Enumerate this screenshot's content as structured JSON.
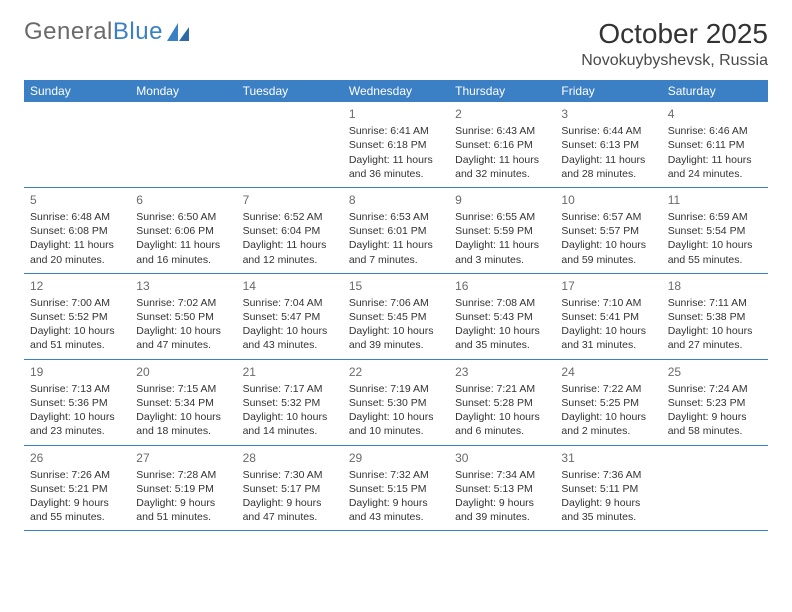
{
  "logo": {
    "text_general": "General",
    "text_blue": "Blue"
  },
  "title": "October 2025",
  "location": "Novokuybyshevsk, Russia",
  "colors": {
    "header_bg": "#3b7fc4",
    "header_text": "#ffffff",
    "rule": "#3b7fc4",
    "body_text": "#333333",
    "daynum_text": "#6a6a6a",
    "logo_gray": "#6a6a6a",
    "logo_blue": "#3b7fc4",
    "page_bg": "#ffffff"
  },
  "day_names": [
    "Sunday",
    "Monday",
    "Tuesday",
    "Wednesday",
    "Thursday",
    "Friday",
    "Saturday"
  ],
  "weeks": [
    [
      null,
      null,
      null,
      {
        "n": "1",
        "sr": "Sunrise: 6:41 AM",
        "ss": "Sunset: 6:18 PM",
        "dl1": "Daylight: 11 hours",
        "dl2": "and 36 minutes."
      },
      {
        "n": "2",
        "sr": "Sunrise: 6:43 AM",
        "ss": "Sunset: 6:16 PM",
        "dl1": "Daylight: 11 hours",
        "dl2": "and 32 minutes."
      },
      {
        "n": "3",
        "sr": "Sunrise: 6:44 AM",
        "ss": "Sunset: 6:13 PM",
        "dl1": "Daylight: 11 hours",
        "dl2": "and 28 minutes."
      },
      {
        "n": "4",
        "sr": "Sunrise: 6:46 AM",
        "ss": "Sunset: 6:11 PM",
        "dl1": "Daylight: 11 hours",
        "dl2": "and 24 minutes."
      }
    ],
    [
      {
        "n": "5",
        "sr": "Sunrise: 6:48 AM",
        "ss": "Sunset: 6:08 PM",
        "dl1": "Daylight: 11 hours",
        "dl2": "and 20 minutes."
      },
      {
        "n": "6",
        "sr": "Sunrise: 6:50 AM",
        "ss": "Sunset: 6:06 PM",
        "dl1": "Daylight: 11 hours",
        "dl2": "and 16 minutes."
      },
      {
        "n": "7",
        "sr": "Sunrise: 6:52 AM",
        "ss": "Sunset: 6:04 PM",
        "dl1": "Daylight: 11 hours",
        "dl2": "and 12 minutes."
      },
      {
        "n": "8",
        "sr": "Sunrise: 6:53 AM",
        "ss": "Sunset: 6:01 PM",
        "dl1": "Daylight: 11 hours",
        "dl2": "and 7 minutes."
      },
      {
        "n": "9",
        "sr": "Sunrise: 6:55 AM",
        "ss": "Sunset: 5:59 PM",
        "dl1": "Daylight: 11 hours",
        "dl2": "and 3 minutes."
      },
      {
        "n": "10",
        "sr": "Sunrise: 6:57 AM",
        "ss": "Sunset: 5:57 PM",
        "dl1": "Daylight: 10 hours",
        "dl2": "and 59 minutes."
      },
      {
        "n": "11",
        "sr": "Sunrise: 6:59 AM",
        "ss": "Sunset: 5:54 PM",
        "dl1": "Daylight: 10 hours",
        "dl2": "and 55 minutes."
      }
    ],
    [
      {
        "n": "12",
        "sr": "Sunrise: 7:00 AM",
        "ss": "Sunset: 5:52 PM",
        "dl1": "Daylight: 10 hours",
        "dl2": "and 51 minutes."
      },
      {
        "n": "13",
        "sr": "Sunrise: 7:02 AM",
        "ss": "Sunset: 5:50 PM",
        "dl1": "Daylight: 10 hours",
        "dl2": "and 47 minutes."
      },
      {
        "n": "14",
        "sr": "Sunrise: 7:04 AM",
        "ss": "Sunset: 5:47 PM",
        "dl1": "Daylight: 10 hours",
        "dl2": "and 43 minutes."
      },
      {
        "n": "15",
        "sr": "Sunrise: 7:06 AM",
        "ss": "Sunset: 5:45 PM",
        "dl1": "Daylight: 10 hours",
        "dl2": "and 39 minutes."
      },
      {
        "n": "16",
        "sr": "Sunrise: 7:08 AM",
        "ss": "Sunset: 5:43 PM",
        "dl1": "Daylight: 10 hours",
        "dl2": "and 35 minutes."
      },
      {
        "n": "17",
        "sr": "Sunrise: 7:10 AM",
        "ss": "Sunset: 5:41 PM",
        "dl1": "Daylight: 10 hours",
        "dl2": "and 31 minutes."
      },
      {
        "n": "18",
        "sr": "Sunrise: 7:11 AM",
        "ss": "Sunset: 5:38 PM",
        "dl1": "Daylight: 10 hours",
        "dl2": "and 27 minutes."
      }
    ],
    [
      {
        "n": "19",
        "sr": "Sunrise: 7:13 AM",
        "ss": "Sunset: 5:36 PM",
        "dl1": "Daylight: 10 hours",
        "dl2": "and 23 minutes."
      },
      {
        "n": "20",
        "sr": "Sunrise: 7:15 AM",
        "ss": "Sunset: 5:34 PM",
        "dl1": "Daylight: 10 hours",
        "dl2": "and 18 minutes."
      },
      {
        "n": "21",
        "sr": "Sunrise: 7:17 AM",
        "ss": "Sunset: 5:32 PM",
        "dl1": "Daylight: 10 hours",
        "dl2": "and 14 minutes."
      },
      {
        "n": "22",
        "sr": "Sunrise: 7:19 AM",
        "ss": "Sunset: 5:30 PM",
        "dl1": "Daylight: 10 hours",
        "dl2": "and 10 minutes."
      },
      {
        "n": "23",
        "sr": "Sunrise: 7:21 AM",
        "ss": "Sunset: 5:28 PM",
        "dl1": "Daylight: 10 hours",
        "dl2": "and 6 minutes."
      },
      {
        "n": "24",
        "sr": "Sunrise: 7:22 AM",
        "ss": "Sunset: 5:25 PM",
        "dl1": "Daylight: 10 hours",
        "dl2": "and 2 minutes."
      },
      {
        "n": "25",
        "sr": "Sunrise: 7:24 AM",
        "ss": "Sunset: 5:23 PM",
        "dl1": "Daylight: 9 hours",
        "dl2": "and 58 minutes."
      }
    ],
    [
      {
        "n": "26",
        "sr": "Sunrise: 7:26 AM",
        "ss": "Sunset: 5:21 PM",
        "dl1": "Daylight: 9 hours",
        "dl2": "and 55 minutes."
      },
      {
        "n": "27",
        "sr": "Sunrise: 7:28 AM",
        "ss": "Sunset: 5:19 PM",
        "dl1": "Daylight: 9 hours",
        "dl2": "and 51 minutes."
      },
      {
        "n": "28",
        "sr": "Sunrise: 7:30 AM",
        "ss": "Sunset: 5:17 PM",
        "dl1": "Daylight: 9 hours",
        "dl2": "and 47 minutes."
      },
      {
        "n": "29",
        "sr": "Sunrise: 7:32 AM",
        "ss": "Sunset: 5:15 PM",
        "dl1": "Daylight: 9 hours",
        "dl2": "and 43 minutes."
      },
      {
        "n": "30",
        "sr": "Sunrise: 7:34 AM",
        "ss": "Sunset: 5:13 PM",
        "dl1": "Daylight: 9 hours",
        "dl2": "and 39 minutes."
      },
      {
        "n": "31",
        "sr": "Sunrise: 7:36 AM",
        "ss": "Sunset: 5:11 PM",
        "dl1": "Daylight: 9 hours",
        "dl2": "and 35 minutes."
      },
      null
    ]
  ]
}
